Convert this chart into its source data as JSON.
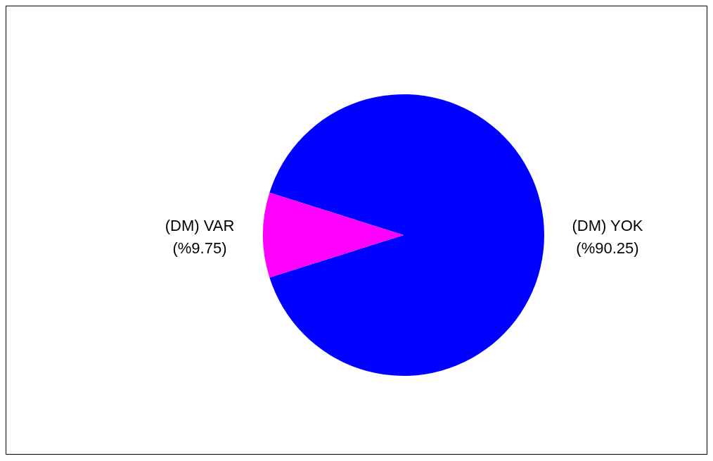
{
  "chart_data": {
    "type": "pie",
    "categories": [
      "(DM) YOK",
      "(DM) VAR"
    ],
    "values": [
      90.25,
      9.75
    ],
    "value_labels": [
      "(%90.25)",
      "(%9.75)"
    ],
    "colors": [
      "#0000ff",
      "#ff00ff"
    ],
    "legend": false
  }
}
